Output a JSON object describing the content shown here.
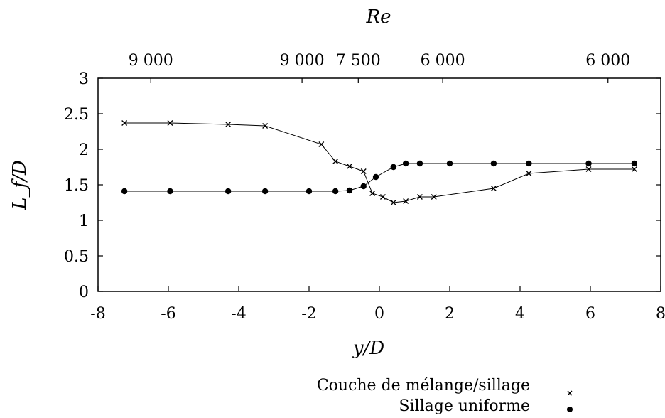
{
  "chart_data": {
    "type": "line",
    "title": "",
    "xlabel": "y/D",
    "ylabel": "L_f/D",
    "top_axis_label": "Re",
    "xlim": [
      -8,
      8
    ],
    "ylim": [
      0,
      3
    ],
    "x_ticks": [
      "-8",
      "-6",
      "-4",
      "-2",
      "0",
      "2",
      "4",
      "6",
      "8"
    ],
    "y_ticks": [
      "0",
      "0.5",
      "1",
      "1.5",
      "2",
      "2.5",
      "3"
    ],
    "top_ticks": [
      {
        "x": -6.5,
        "label": "9 000"
      },
      {
        "x": -2.2,
        "label": "9 000"
      },
      {
        "x": -0.6,
        "label": "7 500"
      },
      {
        "x": 1.8,
        "label": "6 000"
      },
      {
        "x": 6.5,
        "label": "6 000"
      }
    ],
    "grid": false,
    "legend_position": "bottom-right",
    "series": [
      {
        "name": "Couche de mélange/sillage",
        "marker": "x",
        "x": [
          -7.25,
          -5.95,
          -4.3,
          -3.25,
          -1.65,
          -1.25,
          -0.85,
          -0.45,
          -0.2,
          0.1,
          0.4,
          0.75,
          1.15,
          1.55,
          3.25,
          4.25,
          5.95,
          7.25
        ],
        "y": [
          2.37,
          2.37,
          2.35,
          2.33,
          2.07,
          1.83,
          1.76,
          1.69,
          1.38,
          1.33,
          1.25,
          1.27,
          1.33,
          1.33,
          1.45,
          1.66,
          1.72,
          1.72
        ]
      },
      {
        "name": "Sillage uniforme",
        "marker": "dot",
        "x": [
          -7.25,
          -5.95,
          -4.3,
          -3.25,
          -2.0,
          -1.25,
          -0.85,
          -0.45,
          -0.1,
          0.4,
          0.75,
          1.15,
          2.0,
          3.25,
          4.25,
          5.95,
          7.25
        ],
        "y": [
          1.41,
          1.41,
          1.41,
          1.41,
          1.41,
          1.41,
          1.42,
          1.48,
          1.61,
          1.75,
          1.8,
          1.8,
          1.8,
          1.8,
          1.8,
          1.8,
          1.8
        ]
      }
    ]
  }
}
